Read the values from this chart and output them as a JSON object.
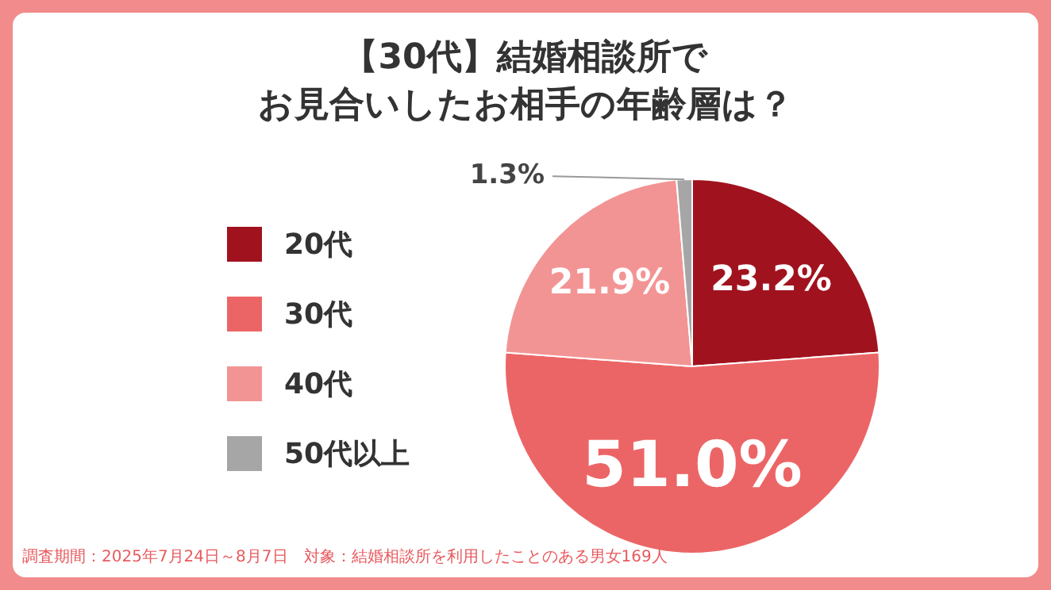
{
  "chart_data": {
    "type": "pie",
    "title": "【30代】結婚相談所で",
    "subtitle": "お見合いしたお相手の年齢層は？",
    "categories": [
      "20代",
      "30代",
      "40代",
      "50代以上"
    ],
    "values": [
      23.2,
      51.0,
      21.9,
      1.3
    ],
    "value_labels": [
      "23.2%",
      "51.0%",
      "21.9%",
      "1.3%"
    ],
    "colors": [
      "#a0131e",
      "#ec6566",
      "#f39494",
      "#a6a6a6"
    ],
    "legend": "left",
    "annotations": [
      "調査期間：2025年7月24日～8月7日　対象：結婚相談所を利用したことのある男女169人"
    ]
  }
}
